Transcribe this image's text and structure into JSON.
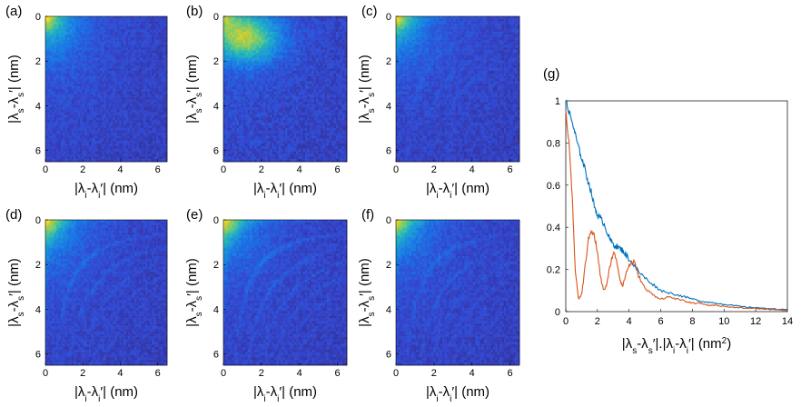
{
  "chart_data": [
    {
      "type": "heatmap",
      "panel": "(a)",
      "xlabel_parts": [
        "|λ",
        "i",
        "-λ",
        "i",
        "′| (nm)"
      ],
      "ylabel_parts": [
        "|λ",
        "s",
        "-λ",
        "s",
        "′| (nm)"
      ],
      "xlim": [
        0,
        6.5
      ],
      "ylim": [
        0,
        6.5
      ],
      "xticks": [
        0,
        2,
        4,
        6
      ],
      "yticks": [
        0,
        2,
        4,
        6
      ],
      "xtick_labels": [
        "0",
        "2",
        "4",
        "6"
      ],
      "ytick_labels": [
        "0",
        "2",
        "4",
        "6"
      ],
      "colormap": "parula",
      "description": "strong corner peak, no arcs",
      "pattern": {
        "corner": 0.95,
        "band": 0,
        "arcs": 0,
        "noise": 0.3
      }
    },
    {
      "type": "heatmap",
      "panel": "(b)",
      "xlabel_parts": [
        "|λ",
        "i",
        "-λ",
        "i",
        "′| (nm)"
      ],
      "ylabel_parts": [
        "|λ",
        "s",
        "-λ",
        "s",
        "′| (nm)"
      ],
      "xlim": [
        0,
        6.5
      ],
      "ylim": [
        0,
        6.5
      ],
      "xticks": [
        0,
        2,
        4,
        6
      ],
      "yticks": [
        0,
        2,
        4,
        6
      ],
      "xtick_labels": [
        "0",
        "2",
        "4",
        "6"
      ],
      "ytick_labels": [
        "0",
        "2",
        "4",
        "6"
      ],
      "colormap": "parula",
      "description": "broad bright region along top",
      "pattern": {
        "corner": 0.6,
        "band": 1.0,
        "arcs": 0,
        "noise": 0.35
      }
    },
    {
      "type": "heatmap",
      "panel": "(c)",
      "xlabel_parts": [
        "|λ",
        "i",
        "-λ",
        "i",
        "′| (nm)"
      ],
      "ylabel_parts": [
        "|λ",
        "s",
        "-λ",
        "s",
        "′| (nm)"
      ],
      "xlim": [
        0,
        6.5
      ],
      "ylim": [
        0,
        6.5
      ],
      "xticks": [
        0,
        2,
        4,
        6
      ],
      "yticks": [
        0,
        2,
        4,
        6
      ],
      "xtick_labels": [
        "0",
        "2",
        "4",
        "6"
      ],
      "ytick_labels": [
        "0",
        "2",
        "4",
        "6"
      ],
      "colormap": "parula",
      "description": "corner peak with faint arcs",
      "pattern": {
        "corner": 0.8,
        "band": 0,
        "arcs": 0.35,
        "noise": 0.3
      }
    },
    {
      "type": "heatmap",
      "panel": "(d)",
      "xlabel_parts": [
        "|λ",
        "i",
        "-λ",
        "i",
        "′| (nm)"
      ],
      "ylabel_parts": [
        "|λ",
        "s",
        "-λ",
        "s",
        "′| (nm)"
      ],
      "xlim": [
        0,
        6.5
      ],
      "ylim": [
        0,
        6.5
      ],
      "xticks": [
        0,
        2,
        4,
        6
      ],
      "yticks": [
        0,
        2,
        4,
        6
      ],
      "xtick_labels": [
        "0",
        "2",
        "4",
        "6"
      ],
      "ytick_labels": [
        "0",
        "2",
        "4",
        "6"
      ],
      "colormap": "parula",
      "description": "corner peak with hyperbolic arcs",
      "pattern": {
        "corner": 0.8,
        "band": 0,
        "arcs": 0.6,
        "noise": 0.3
      }
    },
    {
      "type": "heatmap",
      "panel": "(e)",
      "xlabel_parts": [
        "|λ",
        "i",
        "-λ",
        "i",
        "′| (nm)"
      ],
      "ylabel_parts": [
        "|λ",
        "s",
        "-λ",
        "s",
        "′| (nm)"
      ],
      "xlim": [
        0,
        6.5
      ],
      "ylim": [
        0,
        6.5
      ],
      "xticks": [
        0,
        2,
        4,
        6
      ],
      "yticks": [
        0,
        2,
        4,
        6
      ],
      "xtick_labels": [
        "0",
        "2",
        "4",
        "6"
      ],
      "ytick_labels": [
        "0",
        "2",
        "4",
        "6"
      ],
      "colormap": "parula",
      "description": "corner peak with strong arcs",
      "pattern": {
        "corner": 0.75,
        "band": 0,
        "arcs": 0.75,
        "noise": 0.3
      }
    },
    {
      "type": "heatmap",
      "panel": "(f)",
      "xlabel_parts": [
        "|λ",
        "i",
        "-λ",
        "i",
        "′| (nm)"
      ],
      "ylabel_parts": [
        "|λ",
        "s",
        "-λ",
        "s",
        "′| (nm)"
      ],
      "xlim": [
        0,
        6.5
      ],
      "ylim": [
        0,
        6.5
      ],
      "xticks": [
        0,
        2,
        4,
        6
      ],
      "yticks": [
        0,
        2,
        4,
        6
      ],
      "xtick_labels": [
        "0",
        "2",
        "4",
        "6"
      ],
      "ytick_labels": [
        "0",
        "2",
        "4",
        "6"
      ],
      "colormap": "parula",
      "description": "corner peak with arcs",
      "pattern": {
        "corner": 0.75,
        "band": 0,
        "arcs": 0.6,
        "noise": 0.3
      }
    },
    {
      "type": "line",
      "panel": "(g)",
      "xlabel_parts": [
        "|λ",
        "s",
        "-λ",
        "s",
        "′|.|λ",
        "i",
        "-λ",
        "i",
        "′| (nm",
        "2",
        ")"
      ],
      "xlim": [
        0,
        14
      ],
      "ylim": [
        0,
        1
      ],
      "xticks": [
        0,
        2,
        4,
        6,
        8,
        10,
        12,
        14
      ],
      "xtick_labels": [
        "0",
        "2",
        "4",
        "6",
        "8",
        "10",
        "12",
        "14"
      ],
      "yticks": [
        0,
        0.2,
        0.4,
        0.6,
        0.8,
        1
      ],
      "ytick_labels": [
        "0",
        "0.2",
        "0.4",
        "0.6",
        "0.8",
        "1"
      ],
      "series": [
        {
          "name": "blue",
          "color": "#0072BD",
          "x": [
            0,
            0.2,
            0.4,
            0.6,
            0.8,
            1,
            1.2,
            1.4,
            1.6,
            1.8,
            2,
            2.2,
            2.4,
            2.6,
            2.8,
            3,
            3.2,
            3.4,
            3.6,
            3.8,
            4,
            4.3,
            4.6,
            5,
            5.5,
            6,
            6.5,
            7,
            7.5,
            8,
            8.5,
            9,
            9.5,
            10,
            10.5,
            11,
            11.5,
            12,
            12.5,
            13,
            13.5,
            14
          ],
          "y": [
            1,
            0.95,
            0.9,
            0.84,
            0.78,
            0.73,
            0.68,
            0.62,
            0.57,
            0.5,
            0.46,
            0.44,
            0.42,
            0.38,
            0.34,
            0.32,
            0.31,
            0.3,
            0.29,
            0.27,
            0.25,
            0.22,
            0.19,
            0.16,
            0.13,
            0.1,
            0.09,
            0.08,
            0.07,
            0.06,
            0.05,
            0.045,
            0.04,
            0.035,
            0.03,
            0.025,
            0.02,
            0.02,
            0.015,
            0.015,
            0.01,
            0.01
          ]
        },
        {
          "name": "orange",
          "color": "#D95319",
          "x": [
            0,
            0.2,
            0.4,
            0.6,
            0.8,
            1,
            1.2,
            1.4,
            1.6,
            1.8,
            2,
            2.2,
            2.4,
            2.6,
            2.8,
            3,
            3.2,
            3.4,
            3.6,
            3.8,
            4,
            4.3,
            4.6,
            5,
            5.5,
            6,
            6.5,
            7,
            7.5,
            8,
            8.5,
            9,
            9.5,
            10,
            10.5,
            11,
            11.5,
            12,
            12.5,
            13,
            13.5,
            14
          ],
          "y": [
            0.95,
            0.8,
            0.55,
            0.2,
            0.06,
            0.08,
            0.2,
            0.33,
            0.39,
            0.36,
            0.28,
            0.16,
            0.1,
            0.13,
            0.22,
            0.28,
            0.25,
            0.16,
            0.12,
            0.18,
            0.22,
            0.24,
            0.17,
            0.11,
            0.08,
            0.06,
            0.07,
            0.06,
            0.05,
            0.04,
            0.04,
            0.03,
            0.03,
            0.025,
            0.02,
            0.02,
            0.015,
            0.015,
            0.012,
            0.01,
            0.008,
            0.005
          ]
        }
      ]
    }
  ]
}
